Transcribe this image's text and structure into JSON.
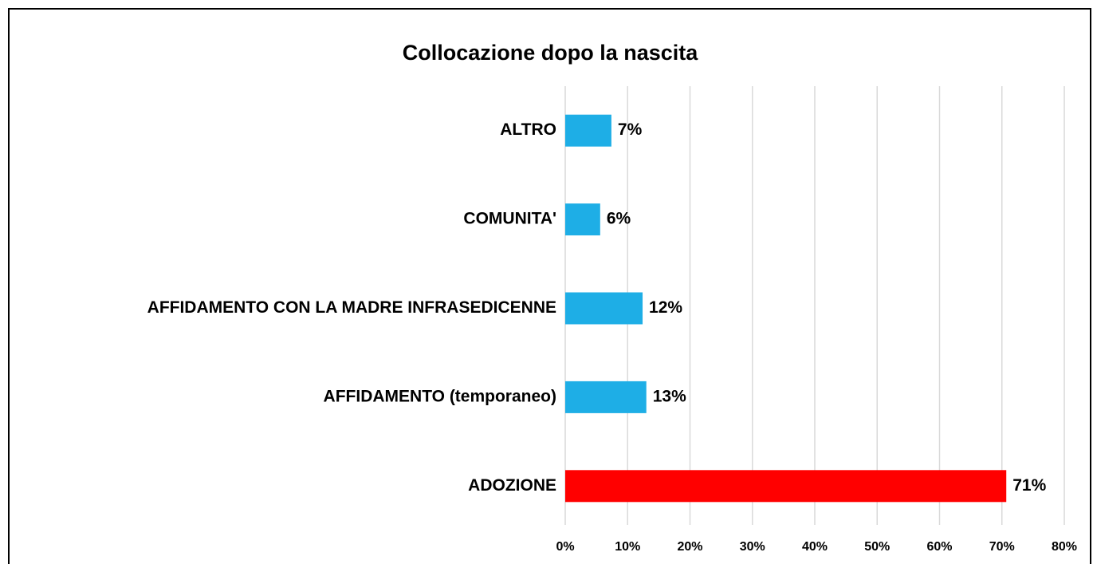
{
  "chart_data": {
    "type": "bar",
    "orientation": "horizontal",
    "title": "Collocazione dopo la nascita",
    "categories": [
      "ALTRO",
      "COMUNITA'",
      "AFFIDAMENTO CON LA MADRE INFRASEDICENNE",
      "AFFIDAMENTO (temporaneo)",
      "ADOZIONE"
    ],
    "values": [
      7.4,
      5.6,
      12.4,
      13.0,
      70.7
    ],
    "value_labels": [
      "7%",
      "6%",
      "12%",
      "13%",
      "71%"
    ],
    "colors": [
      "#1eaee6",
      "#1eaee6",
      "#1eaee6",
      "#1eaee6",
      "#ff0000"
    ],
    "xlim": [
      0,
      80
    ],
    "xticks": [
      {
        "value": 0,
        "label": "0%"
      },
      {
        "value": 10,
        "label": "10%"
      },
      {
        "value": 20,
        "label": "20%"
      },
      {
        "value": 30,
        "label": "30%"
      },
      {
        "value": 40,
        "label": "40%"
      },
      {
        "value": 50,
        "label": "50%"
      },
      {
        "value": 60,
        "label": "60%"
      },
      {
        "value": 70,
        "label": "70%"
      },
      {
        "value": 80,
        "label": "80%"
      }
    ],
    "grid": true
  }
}
